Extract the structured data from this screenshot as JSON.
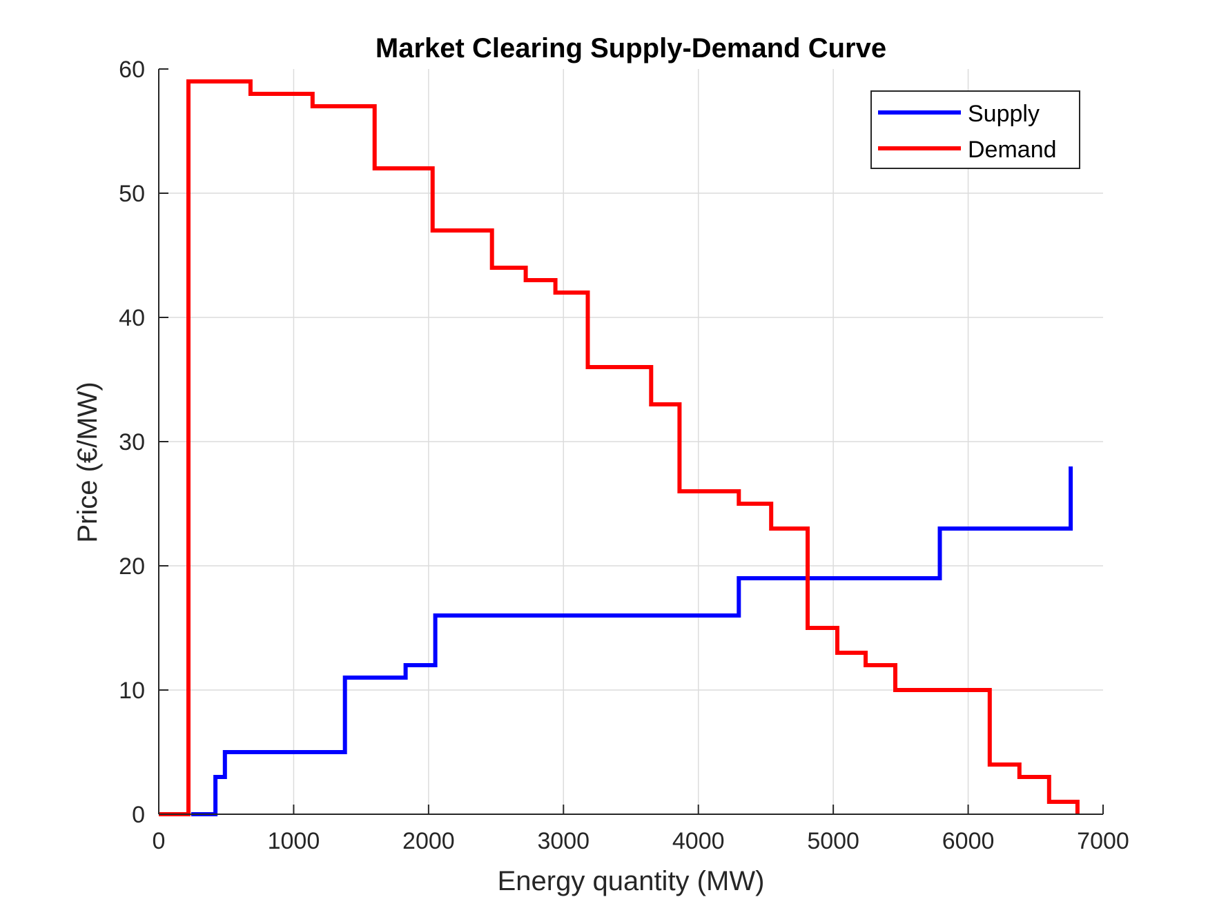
{
  "chart_data": {
    "type": "line",
    "title": "Market Clearing Supply-Demand Curve",
    "xlabel": "Energy quantity (MW)",
    "ylabel": "Price (€/MW)",
    "xlim": [
      0,
      7000
    ],
    "ylim": [
      0,
      60
    ],
    "xticks": [
      0,
      1000,
      2000,
      3000,
      4000,
      5000,
      6000,
      7000
    ],
    "yticks": [
      0,
      10,
      20,
      30,
      40,
      50,
      60
    ],
    "grid": true,
    "legend_position": "top-right",
    "step": true,
    "series": [
      {
        "name": "Supply",
        "color": "#0000ff",
        "x": [
          240,
          420,
          420,
          490,
          490,
          1380,
          1380,
          1830,
          1830,
          2050,
          2050,
          4300,
          4300,
          5790,
          5790,
          6760,
          6760
        ],
        "y": [
          0,
          0,
          3,
          3,
          5,
          5,
          11,
          11,
          12,
          12,
          16,
          16,
          19,
          19,
          23,
          23,
          28
        ]
      },
      {
        "name": "Demand",
        "color": "#ff0000",
        "x": [
          0,
          220,
          220,
          680,
          680,
          1140,
          1140,
          1600,
          1600,
          2030,
          2030,
          2470,
          2470,
          2720,
          2720,
          2940,
          2940,
          3180,
          3180,
          3650,
          3650,
          3860,
          3860,
          4300,
          4300,
          4540,
          4540,
          4810,
          4810,
          5030,
          5030,
          5240,
          5240,
          5460,
          5460,
          6160,
          6160,
          6380,
          6380,
          6600,
          6600,
          6810,
          6810
        ],
        "y": [
          0,
          0,
          59,
          59,
          58,
          58,
          57,
          57,
          52,
          52,
          47,
          47,
          44,
          44,
          43,
          43,
          42,
          42,
          36,
          36,
          33,
          33,
          26,
          26,
          25,
          25,
          23,
          23,
          15,
          15,
          13,
          13,
          12,
          12,
          10,
          10,
          4,
          4,
          3,
          3,
          1,
          1,
          0
        ]
      }
    ]
  }
}
